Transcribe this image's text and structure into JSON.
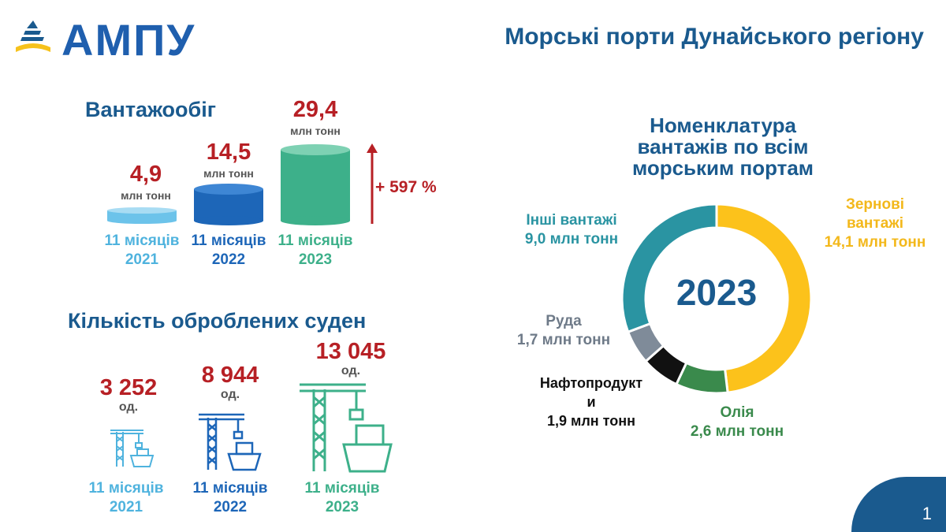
{
  "brand": {
    "name": "АМПУ"
  },
  "page_title": "Морські порти Дунайського регіону",
  "cargo": {
    "title": "Вантажообіг",
    "unit": "млн тонн",
    "growth": "+ 597 %",
    "items": [
      {
        "value": "4,9",
        "period_line1": "11 місяців",
        "period_line2": "2021"
      },
      {
        "value": "14,5",
        "period_line1": "11 місяців",
        "period_line2": "2022"
      },
      {
        "value": "29,4",
        "period_line1": "11 місяців",
        "period_line2": "2023"
      }
    ]
  },
  "vessels": {
    "title": "Кількість оброблених суден",
    "unit": "од.",
    "items": [
      {
        "value": "3 252",
        "period_line1": "11 місяців",
        "period_line2": "2021"
      },
      {
        "value": "8 944",
        "period_line1": "11 місяців",
        "period_line2": "2022"
      },
      {
        "value": "13 045",
        "period_line1": "11 місяців",
        "period_line2": "2023"
      }
    ]
  },
  "nomenclature": {
    "title_line1": "Номенклатура",
    "title_line2": "вантажів по всім",
    "title_line3": "морським портам",
    "center_label": "2023",
    "labels": {
      "grain_l1": "Зернові",
      "grain_l2": "вантажі",
      "grain_l3": "14,1 млн тонн",
      "other_l1": "Інші вантажі",
      "other_l2": "9,0 млн тонн",
      "ore_l1": "Руда",
      "ore_l2": "1,7 млн тонн",
      "oil_products_l1": "Нафтопродукт",
      "oil_products_l2": "и",
      "oil_products_l3": "1,9 млн тонн",
      "oil_l1": "Олія",
      "oil_l2": "2,6 млн тонн"
    }
  },
  "page_number": "1",
  "colors": {
    "brand_blue": "#1a5a8e",
    "value_red": "#b72025",
    "y2021": "#4fb3de",
    "y2022": "#1d66b8",
    "y2023": "#3db08a",
    "grain": "#fcc21b",
    "oil": "#3a8a4c",
    "oil_products": "#111111",
    "ore": "#7f8b99",
    "other": "#2a94a2"
  },
  "chart_data": [
    {
      "type": "bar",
      "title": "Вантажообіг",
      "categories": [
        "11 місяців 2021",
        "11 місяців 2022",
        "11 місяців 2023"
      ],
      "values": [
        4.9,
        14.5,
        29.4
      ],
      "unit": "млн тонн",
      "annotation": "+ 597 %"
    },
    {
      "type": "bar",
      "title": "Кількість оброблених суден",
      "categories": [
        "11 місяців 2021",
        "11 місяців 2022",
        "11 місяців 2023"
      ],
      "values": [
        3252,
        8944,
        13045
      ],
      "unit": "од."
    },
    {
      "type": "pie",
      "title": "Номенклатура вантажів по всім морським портам",
      "center": "2023",
      "slices": [
        {
          "name": "Зернові вантажі",
          "value": 14.1,
          "color": "#fcc21b"
        },
        {
          "name": "Олія",
          "value": 2.6,
          "color": "#3a8a4c"
        },
        {
          "name": "Нафтопродукти",
          "value": 1.9,
          "color": "#111111"
        },
        {
          "name": "Руда",
          "value": 1.7,
          "color": "#7f8b99"
        },
        {
          "name": "Інші вантажі",
          "value": 9.0,
          "color": "#2a94a2"
        }
      ],
      "unit": "млн тонн"
    }
  ]
}
